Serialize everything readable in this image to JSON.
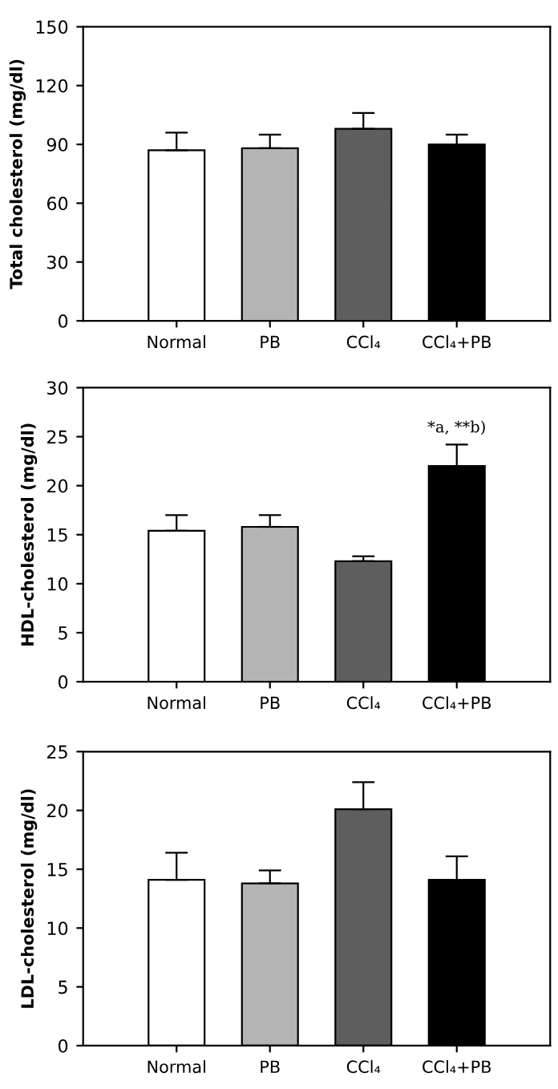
{
  "chart_data": [
    {
      "type": "bar",
      "ylabel": "Total cholesterol (mg/dl)",
      "categories": [
        "Normal",
        "PB",
        "CCl₄",
        "CCl₄+PB"
      ],
      "values": [
        87,
        88,
        98,
        90
      ],
      "colors": [
        "#ffffff",
        "#b4b4b4",
        "#5e5e5e",
        "#000000"
      ],
      "errors": [
        [
          87,
          96
        ],
        [
          88,
          95
        ],
        [
          98,
          106
        ],
        [
          90,
          95
        ]
      ],
      "ylim": [
        0,
        150
      ],
      "yticks": [
        0,
        30,
        60,
        90,
        120,
        150
      ],
      "grid": false,
      "legend": false
    },
    {
      "type": "bar",
      "ylabel": "HDL-cholesterol (mg/dl)",
      "categories": [
        "Normal",
        "PB",
        "CCl₄",
        "CCl₄+PB"
      ],
      "values": [
        15.4,
        15.8,
        12.3,
        22.0
      ],
      "colors": [
        "#ffffff",
        "#b4b4b4",
        "#5e5e5e",
        "#000000"
      ],
      "errors": [
        [
          15.4,
          17.0
        ],
        [
          15.8,
          17.0
        ],
        [
          12.3,
          12.8
        ],
        [
          22.0,
          24.2
        ]
      ],
      "ylim": [
        0,
        30
      ],
      "yticks": [
        0,
        5,
        10,
        15,
        20,
        25,
        30
      ],
      "grid": false,
      "legend": false,
      "annotations": [
        {
          "text": "*a, **b)",
          "x": "CCl₄+PB",
          "y": 24.2
        }
      ]
    },
    {
      "type": "bar",
      "ylabel": "LDL-cholesterol (mg/dl)",
      "categories": [
        "Normal",
        "PB",
        "CCl₄",
        "CCl₄+PB"
      ],
      "values": [
        14.1,
        13.8,
        20.1,
        14.1
      ],
      "colors": [
        "#ffffff",
        "#b4b4b4",
        "#5e5e5e",
        "#000000"
      ],
      "errors": [
        [
          14.1,
          16.4
        ],
        [
          13.8,
          14.9
        ],
        [
          20.1,
          22.4
        ],
        [
          14.1,
          16.1
        ]
      ],
      "ylim": [
        0,
        25
      ],
      "yticks": [
        0,
        5,
        10,
        15,
        20,
        25
      ],
      "grid": false,
      "legend": false
    }
  ]
}
